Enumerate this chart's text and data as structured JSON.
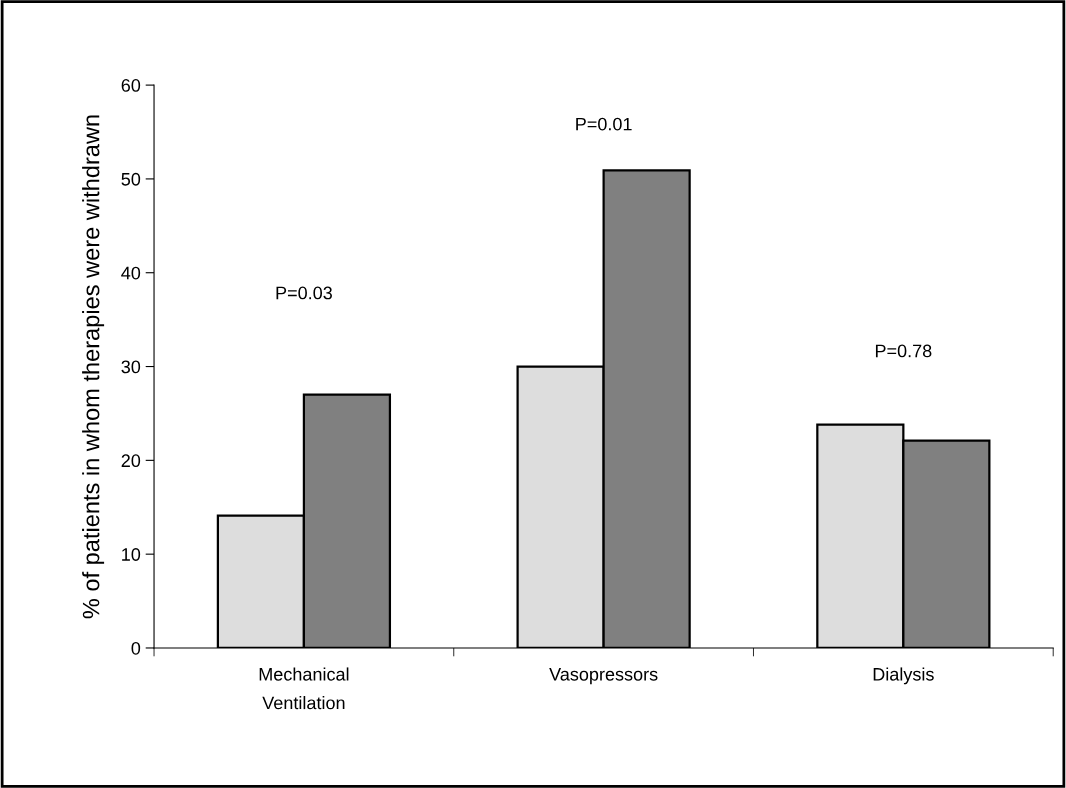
{
  "chart_data": {
    "type": "bar",
    "ylabel": "% of patients in whom therapies were withdrawn",
    "categories": [
      "Mechanical\nVentilation",
      "Vasopressors",
      "Dialysis"
    ],
    "series": [
      {
        "color": "#dddddd",
        "values": [
          14.1,
          30.0,
          23.8
        ]
      },
      {
        "color": "#808080",
        "values": [
          27.0,
          50.9,
          22.1
        ]
      }
    ],
    "ylim": [
      0,
      60
    ],
    "yticks": [
      0,
      10,
      20,
      30,
      40,
      50,
      60
    ],
    "grid": false,
    "legend": false,
    "annotations": [
      "P=0.03",
      "P=0.01",
      "P=0.78"
    ]
  }
}
